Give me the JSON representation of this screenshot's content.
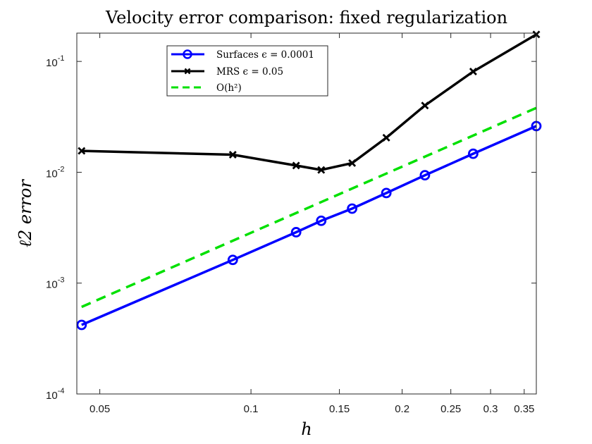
{
  "chart_data": {
    "type": "line",
    "title": "Velocity error comparison: fixed regularization",
    "xlabel": "h",
    "ylabel": "ℓ2 error",
    "xscale": "log",
    "yscale": "log",
    "xlim": [
      0.045,
      0.37
    ],
    "ylim": [
      0.0001,
      0.18
    ],
    "x_ticks": [
      {
        "value": 0.05,
        "label": "0.05"
      },
      {
        "value": 0.1,
        "label": "0.1"
      },
      {
        "value": 0.15,
        "label": "0.15"
      },
      {
        "value": 0.2,
        "label": "0.2"
      },
      {
        "value": 0.25,
        "label": "0.25"
      },
      {
        "value": 0.3,
        "label": "0.3"
      },
      {
        "value": 0.35,
        "label": "0.35"
      }
    ],
    "y_ticks": [
      {
        "value": 0.0001,
        "base": "10",
        "exp": "-4"
      },
      {
        "value": 0.001,
        "base": "10",
        "exp": "-3"
      },
      {
        "value": 0.01,
        "base": "10",
        "exp": "-2"
      },
      {
        "value": 0.1,
        "base": "10",
        "exp": "-1"
      }
    ],
    "legend_position": "top-left",
    "series": [
      {
        "name": "Surfaces ϵ = 0.0001",
        "color": "#0000ff",
        "marker": "circle",
        "dash": "solid",
        "x": [
          0.046,
          0.092,
          0.123,
          0.138,
          0.159,
          0.186,
          0.222,
          0.277,
          0.37
        ],
        "y": [
          0.00042,
          0.00162,
          0.00288,
          0.00365,
          0.0047,
          0.0065,
          0.0094,
          0.0147,
          0.0261
        ]
      },
      {
        "name": "MRS ϵ = 0.05",
        "color": "#000000",
        "marker": "x",
        "dash": "solid",
        "x": [
          0.046,
          0.092,
          0.123,
          0.138,
          0.159,
          0.186,
          0.222,
          0.277,
          0.37
        ],
        "y": [
          0.0156,
          0.0144,
          0.0115,
          0.0105,
          0.0121,
          0.0205,
          0.04,
          0.081,
          0.175
        ]
      },
      {
        "name": "O(h²)",
        "color": "#00e000",
        "marker": "none",
        "dash": "dashed",
        "x": [
          0.046,
          0.37
        ],
        "y": [
          0.00061,
          0.0381
        ]
      }
    ]
  }
}
